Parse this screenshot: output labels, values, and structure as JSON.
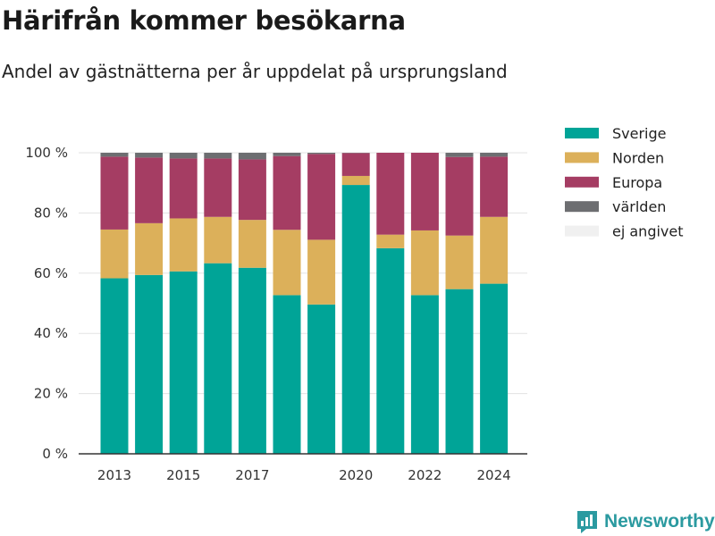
{
  "title": "Härifrån kommer besökarna",
  "subtitle": "Andel av gästnätterna per år uppdelat på ursprungsland",
  "brand": {
    "name": "Newsworthy",
    "icon": "newsworthy-logo-icon",
    "color": "#2b9aa0"
  },
  "chart_data": {
    "type": "bar",
    "stacked": true,
    "categories": [
      "2013",
      "2014",
      "2015",
      "2016",
      "2017",
      "2018",
      "2019",
      "2020",
      "2021",
      "2022",
      "2023",
      "2024"
    ],
    "xtick_labels": [
      "2013",
      "2015",
      "2017",
      "2020",
      "2022",
      "2024"
    ],
    "ytick_labels": [
      "0 %",
      "20 %",
      "40 %",
      "60 %",
      "80 %",
      "100 %"
    ],
    "ylim": [
      0,
      100
    ],
    "grid": true,
    "legend_position": "top-right",
    "series": [
      {
        "name": "Sverige",
        "color": "#00a497",
        "values": [
          58.3,
          59.4,
          60.6,
          63.3,
          61.8,
          52.7,
          49.6,
          89.3,
          68.3,
          52.7,
          54.7,
          56.5
        ]
      },
      {
        "name": "Norden",
        "color": "#dcb05a",
        "values": [
          16.2,
          17.2,
          17.6,
          15.4,
          15.9,
          21.7,
          21.5,
          3.0,
          4.5,
          21.5,
          17.8,
          22.2
        ]
      },
      {
        "name": "Europa",
        "color": "#a53d63",
        "values": [
          24.2,
          21.8,
          19.9,
          19.4,
          20.1,
          24.5,
          28.5,
          7.6,
          27.2,
          25.8,
          26.1,
          20.0
        ]
      },
      {
        "name": "världen",
        "color": "#6d6e71",
        "values": [
          1.3,
          1.6,
          1.9,
          1.9,
          2.2,
          1.1,
          0.4,
          0.1,
          0.0,
          0.0,
          1.4,
          1.3
        ]
      },
      {
        "name": "ej angivet",
        "color": "#f0f0f0",
        "values": [
          0,
          0,
          0,
          0,
          0,
          0,
          0,
          0,
          0,
          0,
          0,
          0
        ]
      }
    ]
  }
}
